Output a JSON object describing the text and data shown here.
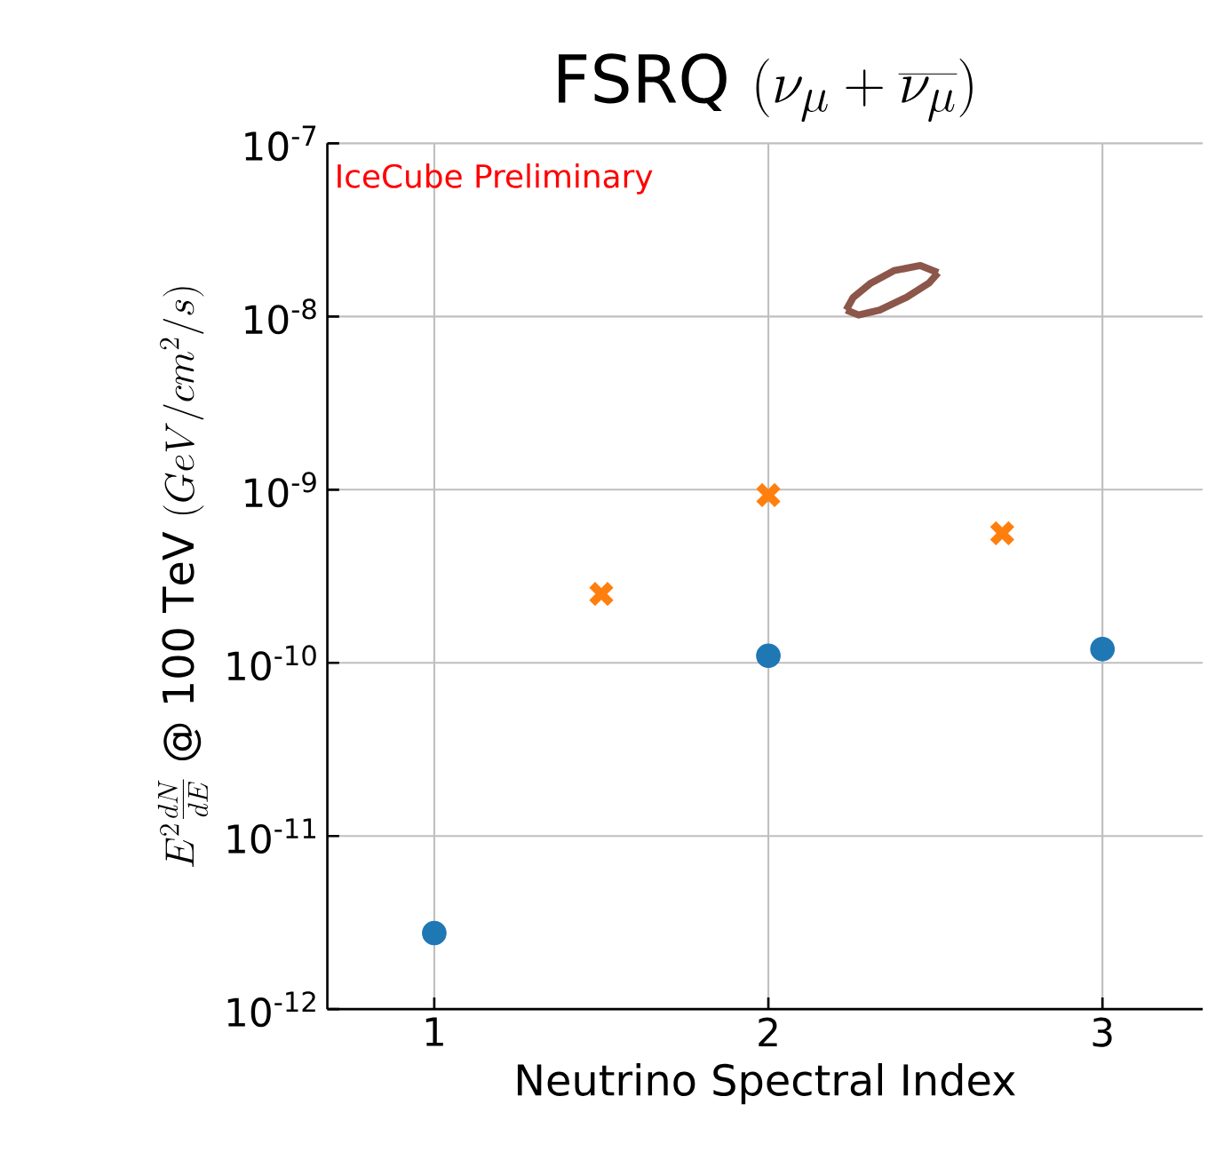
{
  "chart_data": {
    "type": "scatter",
    "title": "\\mathrm{FSRQ}\\ (\\nu_\\mu + \\overline{\\nu_\\mu})",
    "xlabel": "Neutrino Spectral Index",
    "ylabel": "E^2\\frac{dN}{dE}\\ \\mathrm{@\\ 100\\ TeV}\\ (GeV/cm^2/s)",
    "annotations": [
      "IceCube Preliminary"
    ],
    "log": "y",
    "grid": true,
    "xlim": [
      0.68,
      3.3
    ],
    "xticks": [
      1,
      2,
      3
    ],
    "ylim": [
      1e-12,
      1e-07
    ],
    "yticks": [
      {
        "value": 1e-12,
        "label": "10$^{-12}$"
      },
      {
        "value": 1e-11,
        "label": "10$^{-11}$"
      },
      {
        "value": 1e-10,
        "label": "10$^{-10}$"
      },
      {
        "value": 1e-09,
        "label": "10$^{-9}$"
      },
      {
        "value": 1e-08,
        "label": "10$^{-8}$"
      },
      {
        "value": 1e-07,
        "label": "10$^{-7}$"
      }
    ],
    "series": [
      {
        "marker": "circle",
        "color": "#1f77b4",
        "x": [
          1,
          2,
          3
        ],
        "values": [
          2.75e-12,
          1.1e-10,
          1.2e-10
        ]
      },
      {
        "marker": "cross",
        "color": "#ff7f0e",
        "x": [
          1.5,
          2,
          2.7
        ],
        "values": [
          2.5e-10,
          9.3e-10,
          5.6e-10
        ]
      },
      {
        "type": "line",
        "marker": "none",
        "color": "#8c564b",
        "x": [
          2.233,
          2.254,
          2.307,
          2.376,
          2.455,
          2.508
        ],
        "values": [
          1.09e-08,
          1.29e-08,
          1.56e-08,
          1.84e-08,
          1.97e-08,
          1.79e-08
        ]
      },
      {
        "type": "line",
        "marker": "none",
        "color": "#8c564b",
        "x": [
          2.233,
          2.27,
          2.333,
          2.413,
          2.481,
          2.508
        ],
        "values": [
          1.09e-08,
          1.02e-08,
          1.09e-08,
          1.29e-08,
          1.56e-08,
          1.79e-08
        ]
      }
    ]
  }
}
